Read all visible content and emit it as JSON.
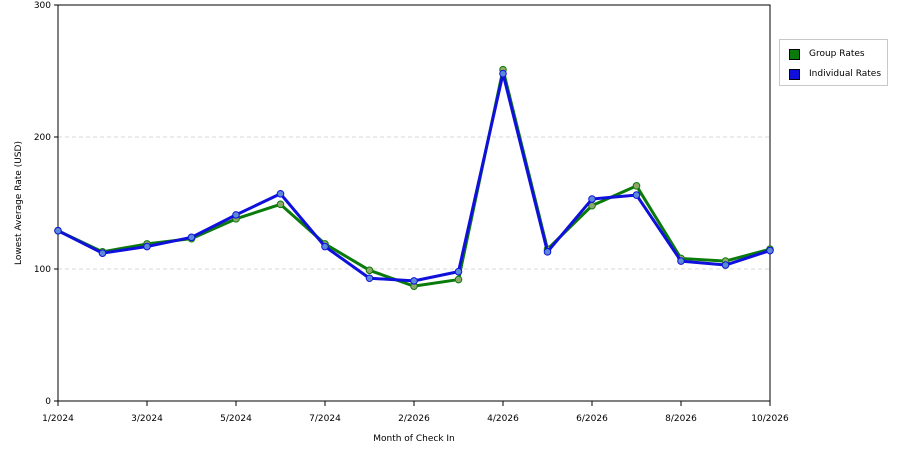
{
  "chart_data": {
    "type": "line",
    "title": "",
    "xlabel": "Month of Check In",
    "ylabel": "Lowest Average Rate (USD)",
    "ylim": [
      0,
      300
    ],
    "yticks": [
      "0",
      "100",
      "200",
      "300"
    ],
    "grid": "horizontal dashed",
    "legend_position": "top-right",
    "categories": [
      "1/2024",
      "2/2024",
      "3/2024",
      "4/2024",
      "5/2024",
      "6/2024",
      "7/2024",
      "8/2024",
      "2/2026",
      "3/2026",
      "4/2026",
      "5/2026",
      "6/2026",
      "7/2026",
      "8/2026",
      "9/2026",
      "10/2026"
    ],
    "xtick_labels": [
      "1/2024",
      "3/2024",
      "5/2024",
      "7/2024",
      "2/2026",
      "4/2026",
      "6/2026",
      "8/2026",
      "10/2026"
    ],
    "series": [
      {
        "name": "Group Rates",
        "color": "#0a7a0a",
        "marker_color": "#8fa86a",
        "values": [
          129,
          113,
          119,
          123,
          138,
          149,
          119,
          99,
          87,
          92,
          251,
          115,
          148,
          163,
          108,
          106,
          115
        ]
      },
      {
        "name": "Individual Rates",
        "color": "#1010dd",
        "marker_color": "#5a8ad8",
        "values": [
          129,
          112,
          117,
          124,
          141,
          157,
          117,
          93,
          91,
          98,
          248,
          113,
          153,
          156,
          106,
          103,
          114
        ]
      }
    ]
  }
}
